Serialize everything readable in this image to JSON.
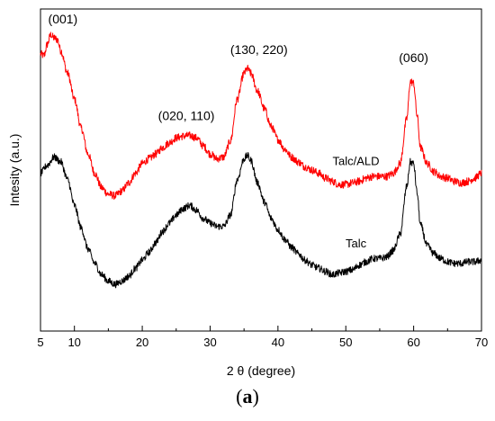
{
  "chart_data": {
    "type": "line",
    "title": "",
    "xlabel": "2 θ  (degree)",
    "ylabel": "Intesity (a.u.)",
    "xlim": [
      5,
      70
    ],
    "xticks": [
      10,
      20,
      30,
      40,
      50,
      60,
      70
    ],
    "ylim": [
      0,
      1
    ],
    "yticks_visible": false,
    "grid": false,
    "series": [
      {
        "name": "Talc/ALD",
        "color": "#ff0000",
        "noise": 0.012,
        "points": [
          [
            5,
            0.86
          ],
          [
            5.5,
            0.855
          ],
          [
            6,
            0.89
          ],
          [
            6.5,
            0.92
          ],
          [
            7,
            0.91
          ],
          [
            7.5,
            0.905
          ],
          [
            8,
            0.87
          ],
          [
            9,
            0.8
          ],
          [
            10,
            0.72
          ],
          [
            11,
            0.63
          ],
          [
            12,
            0.55
          ],
          [
            13,
            0.49
          ],
          [
            14,
            0.445
          ],
          [
            15,
            0.425
          ],
          [
            16,
            0.42
          ],
          [
            17,
            0.435
          ],
          [
            18,
            0.46
          ],
          [
            19,
            0.49
          ],
          [
            20,
            0.52
          ],
          [
            21,
            0.535
          ],
          [
            22,
            0.55
          ],
          [
            23,
            0.57
          ],
          [
            24,
            0.585
          ],
          [
            25,
            0.6
          ],
          [
            26,
            0.605
          ],
          [
            27,
            0.607
          ],
          [
            28,
            0.6
          ],
          [
            29,
            0.575
          ],
          [
            30,
            0.55
          ],
          [
            31,
            0.535
          ],
          [
            32,
            0.54
          ],
          [
            33,
            0.59
          ],
          [
            34,
            0.72
          ],
          [
            35,
            0.8
          ],
          [
            35.5,
            0.815
          ],
          [
            36,
            0.8
          ],
          [
            37,
            0.745
          ],
          [
            38,
            0.69
          ],
          [
            39,
            0.635
          ],
          [
            40,
            0.595
          ],
          [
            41,
            0.565
          ],
          [
            42,
            0.54
          ],
          [
            43,
            0.525
          ],
          [
            44,
            0.51
          ],
          [
            45,
            0.5
          ],
          [
            46,
            0.49
          ],
          [
            47,
            0.475
          ],
          [
            48,
            0.465
          ],
          [
            49,
            0.455
          ],
          [
            50,
            0.455
          ],
          [
            51,
            0.46
          ],
          [
            52,
            0.465
          ],
          [
            53,
            0.475
          ],
          [
            54,
            0.48
          ],
          [
            55,
            0.48
          ],
          [
            56,
            0.48
          ],
          [
            57,
            0.49
          ],
          [
            58,
            0.52
          ],
          [
            59,
            0.66
          ],
          [
            59.5,
            0.775
          ],
          [
            60,
            0.77
          ],
          [
            60.5,
            0.67
          ],
          [
            61,
            0.57
          ],
          [
            62,
            0.52
          ],
          [
            63,
            0.495
          ],
          [
            64,
            0.48
          ],
          [
            65,
            0.475
          ],
          [
            66,
            0.465
          ],
          [
            67,
            0.46
          ],
          [
            68,
            0.465
          ],
          [
            69,
            0.475
          ],
          [
            70,
            0.49
          ]
        ]
      },
      {
        "name": "Talc",
        "color": "#000000",
        "noise": 0.011,
        "points": [
          [
            5,
            0.49
          ],
          [
            6,
            0.515
          ],
          [
            7,
            0.54
          ],
          [
            8,
            0.525
          ],
          [
            9,
            0.47
          ],
          [
            10,
            0.39
          ],
          [
            11,
            0.32
          ],
          [
            12,
            0.255
          ],
          [
            13,
            0.21
          ],
          [
            14,
            0.175
          ],
          [
            15,
            0.155
          ],
          [
            16,
            0.145
          ],
          [
            17,
            0.155
          ],
          [
            18,
            0.17
          ],
          [
            19,
            0.195
          ],
          [
            20,
            0.22
          ],
          [
            21,
            0.245
          ],
          [
            22,
            0.275
          ],
          [
            23,
            0.31
          ],
          [
            24,
            0.335
          ],
          [
            25,
            0.36
          ],
          [
            26,
            0.38
          ],
          [
            27,
            0.39
          ],
          [
            28,
            0.375
          ],
          [
            29,
            0.35
          ],
          [
            30,
            0.335
          ],
          [
            31,
            0.325
          ],
          [
            32,
            0.325
          ],
          [
            33,
            0.36
          ],
          [
            34,
            0.47
          ],
          [
            35,
            0.535
          ],
          [
            35.5,
            0.545
          ],
          [
            36,
            0.53
          ],
          [
            37,
            0.46
          ],
          [
            38,
            0.4
          ],
          [
            39,
            0.35
          ],
          [
            40,
            0.315
          ],
          [
            41,
            0.285
          ],
          [
            42,
            0.26
          ],
          [
            43,
            0.24
          ],
          [
            44,
            0.22
          ],
          [
            45,
            0.205
          ],
          [
            46,
            0.195
          ],
          [
            47,
            0.185
          ],
          [
            48,
            0.175
          ],
          [
            49,
            0.18
          ],
          [
            50,
            0.185
          ],
          [
            51,
            0.19
          ],
          [
            52,
            0.205
          ],
          [
            53,
            0.215
          ],
          [
            54,
            0.225
          ],
          [
            55,
            0.225
          ],
          [
            56,
            0.23
          ],
          [
            57,
            0.25
          ],
          [
            58,
            0.3
          ],
          [
            59,
            0.45
          ],
          [
            59.5,
            0.525
          ],
          [
            60,
            0.52
          ],
          [
            60.5,
            0.43
          ],
          [
            61,
            0.33
          ],
          [
            62,
            0.265
          ],
          [
            63,
            0.24
          ],
          [
            64,
            0.225
          ],
          [
            65,
            0.215
          ],
          [
            66,
            0.21
          ],
          [
            67,
            0.21
          ],
          [
            68,
            0.215
          ],
          [
            69,
            0.215
          ],
          [
            70,
            0.22
          ]
        ]
      }
    ],
    "series_labels": [
      {
        "series": "Talc/ALD",
        "text": "Talc/ALD",
        "x": 51.5,
        "y": 0.515
      },
      {
        "series": "Talc",
        "text": "Talc",
        "x": 51.5,
        "y": 0.26
      }
    ],
    "annotations": [
      {
        "text": "(001)",
        "x": 8.3,
        "y": 0.955
      },
      {
        "text": "(020, 110)",
        "x": 26.5,
        "y": 0.655
      },
      {
        "text": "(130, 220)",
        "x": 37.2,
        "y": 0.86
      },
      {
        "text": "(060)",
        "x": 60,
        "y": 0.835
      }
    ]
  },
  "panel_label": {
    "open": "(",
    "letter": "a",
    "close": ")"
  }
}
